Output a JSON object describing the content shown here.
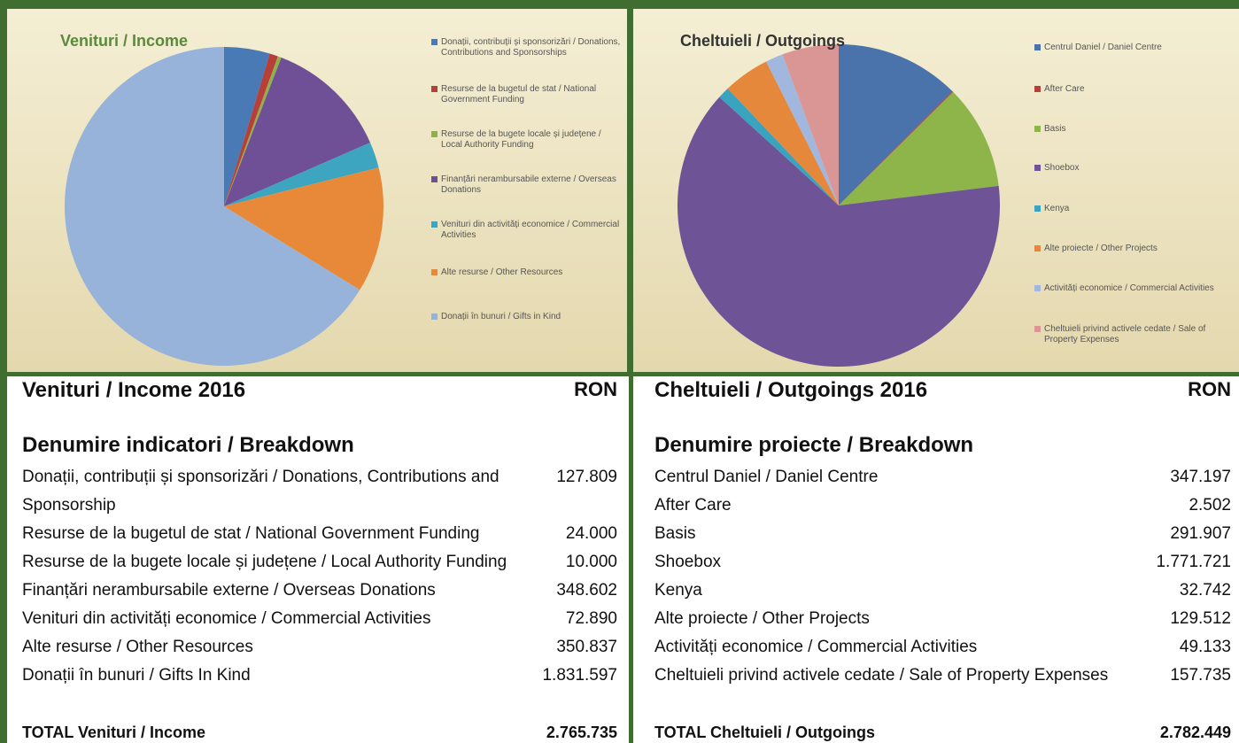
{
  "chart_data": [
    {
      "type": "pie",
      "title": "Venituri / Income",
      "categories": [
        "Donații, contribuții și sponsorizări / Donations, Contributions and Sponsorships",
        "Resurse de la bugetul de stat / National Government Funding",
        "Resurse de la bugete locale și județene / Local Authority Funding",
        "Finanțări nerambursabile externe / Overseas Donations",
        "Venituri din activități economice / Commercial Activities",
        "Alte resurse / Other Resources",
        "Donații în bunuri / Gifts in Kind"
      ],
      "values": [
        127809,
        24000,
        10000,
        348602,
        72890,
        350837,
        1831597
      ],
      "colors": [
        "#4a7ab5",
        "#b5403a",
        "#8fb04a",
        "#6f4f95",
        "#3ea5c0",
        "#e8893a",
        "#98b3d9"
      ]
    },
    {
      "type": "pie",
      "title": "Cheltuieli / Outgoings",
      "categories": [
        "Centrul Daniel / Daniel Centre",
        "After Care",
        "Basis",
        "Shoebox",
        "Kenya",
        "Alte proiecte / Other Projects",
        "Activități economice / Commercial Activities",
        "Cheltuieli privind activele cedate / Sale of Property Expenses"
      ],
      "values": [
        347197,
        2502,
        291907,
        1771721,
        32742,
        129512,
        49133,
        157735
      ],
      "colors": [
        "#4a72ab",
        "#b5403a",
        "#8db54a",
        "#6e5496",
        "#3aa3bf",
        "#e6883c",
        "#a2b7dd",
        "#d99694"
      ]
    }
  ],
  "tables": [
    {
      "title": "Venituri / Income 2016",
      "currency": "RON",
      "heading": "Denumire indicatori / Breakdown",
      "rows": [
        [
          "Donații, contribuții și sponsorizări / Donations, Contributions and Sponsorship",
          "127.809"
        ],
        [
          "Resurse de la bugetul de stat / National Government Funding",
          "24.000"
        ],
        [
          "Resurse de la bugete locale și județene / Local Authority Funding",
          "10.000"
        ],
        [
          "Finanțări nerambursabile externe / Overseas Donations",
          "348.602"
        ],
        [
          "Venituri din activități economice / Commercial Activities",
          "72.890"
        ],
        [
          "Alte resurse / Other Resources",
          "350.837"
        ],
        [
          "Donații în bunuri / Gifts In Kind",
          "1.831.597"
        ]
      ],
      "total": [
        "TOTAL Venituri / Income",
        "2.765.735"
      ]
    },
    {
      "title": "Cheltuieli / Outgoings 2016",
      "currency": "RON",
      "heading": "Denumire proiecte / Breakdown",
      "rows": [
        [
          "Centrul Daniel / Daniel Centre",
          "347.197"
        ],
        [
          "After Care",
          "2.502"
        ],
        [
          "Basis",
          "291.907"
        ],
        [
          "Shoebox",
          "1.771.721"
        ],
        [
          "Kenya",
          "32.742"
        ],
        [
          "Alte proiecte / Other Projects",
          "129.512"
        ],
        [
          "Activități economice /  Commercial Activities",
          "49.133"
        ],
        [
          "Cheltuieli privind activele cedate / Sale of Property Expenses",
          "157.735"
        ]
      ],
      "total": [
        "TOTAL Cheltuieli / Outgoings",
        "2.782.449"
      ]
    }
  ]
}
